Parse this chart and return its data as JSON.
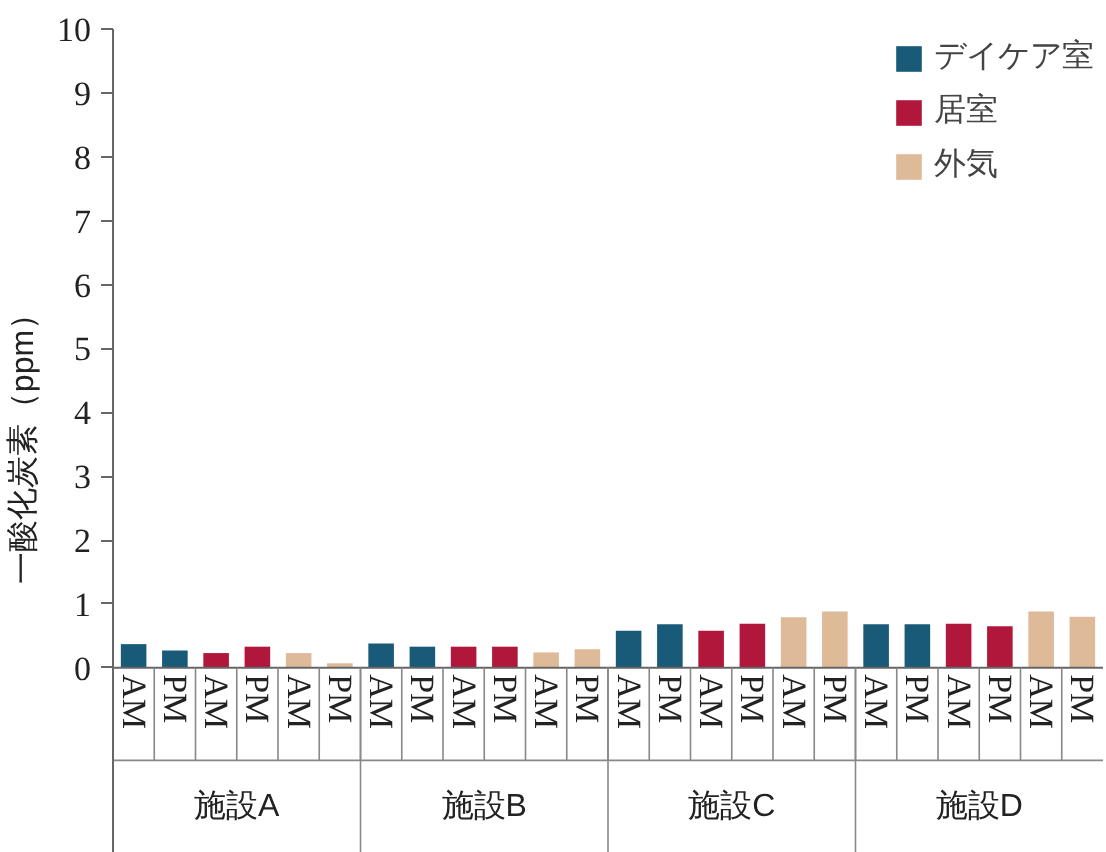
{
  "chart_data": {
    "type": "bar",
    "ylabel": "一酸化炭素（ppm）",
    "categories": [
      "AM",
      "PM",
      "AM",
      "PM",
      "AM",
      "PM",
      "AM",
      "PM",
      "AM",
      "PM",
      "AM",
      "PM",
      "AM",
      "PM",
      "AM",
      "PM",
      "AM",
      "PM",
      "AM",
      "PM",
      "AM",
      "PM",
      "AM",
      "PM"
    ],
    "series": [
      {
        "name": "デイケア室",
        "color": "#185a78",
        "values": [
          0.37,
          0.27,
          null,
          null,
          null,
          null,
          0.38,
          0.33,
          null,
          null,
          null,
          null,
          0.58,
          0.68,
          null,
          null,
          null,
          null,
          0.68,
          0.68,
          null,
          null,
          null,
          null
        ]
      },
      {
        "name": "居室",
        "color": "#b0173a",
        "values": [
          null,
          null,
          0.23,
          0.33,
          null,
          null,
          null,
          null,
          0.33,
          0.33,
          null,
          null,
          null,
          null,
          0.58,
          0.69,
          null,
          null,
          null,
          null,
          0.69,
          0.65,
          null,
          null
        ]
      },
      {
        "name": "外気",
        "color": "#deba98",
        "values": [
          null,
          null,
          null,
          null,
          0.23,
          0.07,
          null,
          null,
          null,
          null,
          0.24,
          0.29,
          null,
          null,
          null,
          null,
          0.79,
          0.88,
          null,
          null,
          null,
          null,
          0.88,
          0.8
        ]
      }
    ],
    "annotations": [
      "施設A",
      "施設B",
      "施設C",
      "施設D"
    ],
    "ylim": [
      0,
      10
    ],
    "yticks": [
      0,
      1,
      2,
      3,
      4,
      5,
      6,
      7,
      8,
      9,
      10
    ],
    "grid": false,
    "legend": "top right"
  }
}
